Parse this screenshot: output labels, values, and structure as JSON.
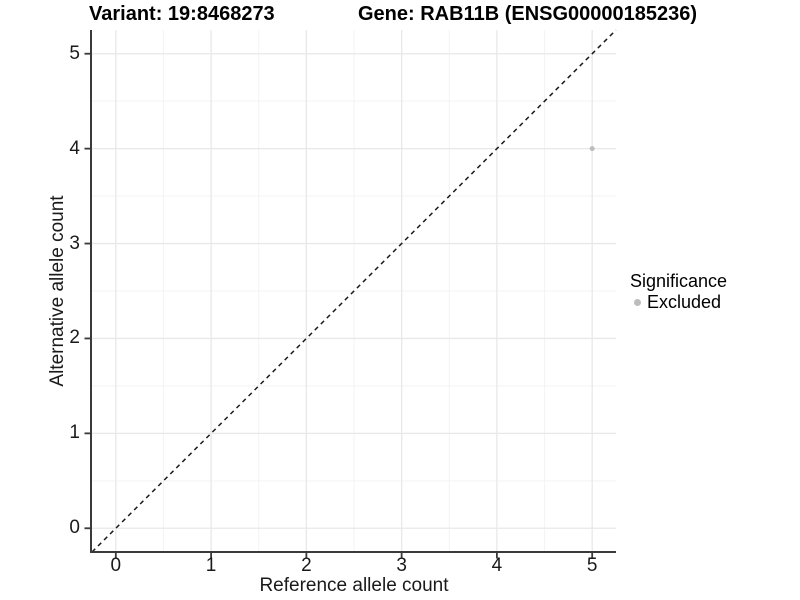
{
  "titles": {
    "left": "Variant: 19:8468273",
    "right": "Gene: RAB11B (ENSG00000185236)"
  },
  "axes": {
    "x_label": "Reference allele count",
    "y_label": "Alternative allele count"
  },
  "legend": {
    "title": "Significance",
    "items": [
      {
        "label": "Excluded",
        "color": "#bdbdbd"
      }
    ]
  },
  "chart_data": {
    "type": "scatter",
    "title": "Variant: 19:8468273    Gene: RAB11B (ENSG00000185236)",
    "xlabel": "Reference allele count",
    "ylabel": "Alternative allele count",
    "xlim": [
      -0.25,
      5.25
    ],
    "ylim": [
      -0.25,
      5.25
    ],
    "x_ticks": [
      "0",
      "1",
      "2",
      "3",
      "4",
      "5"
    ],
    "y_ticks": [
      "0",
      "1",
      "2",
      "3",
      "4",
      "5"
    ],
    "grid": "major+minor",
    "legend_position": "right",
    "series": [
      {
        "name": "Excluded",
        "color": "#bdbdbd",
        "marker": "circle",
        "points": [
          {
            "x": 5,
            "y": 4
          }
        ]
      }
    ],
    "reference_line": {
      "slope": 1,
      "intercept": 0,
      "style": "dashed",
      "color": "#1a1a1a"
    }
  },
  "style": {
    "background": "#ffffff",
    "grid_major_color": "#e8e8e8",
    "grid_minor_color": "#f3f3f3",
    "axis_line_color": "#3a3a3a",
    "tick_color": "#3a3a3a",
    "point_color": "#bdbdbd",
    "dashed_line_color": "#1a1a1a"
  }
}
